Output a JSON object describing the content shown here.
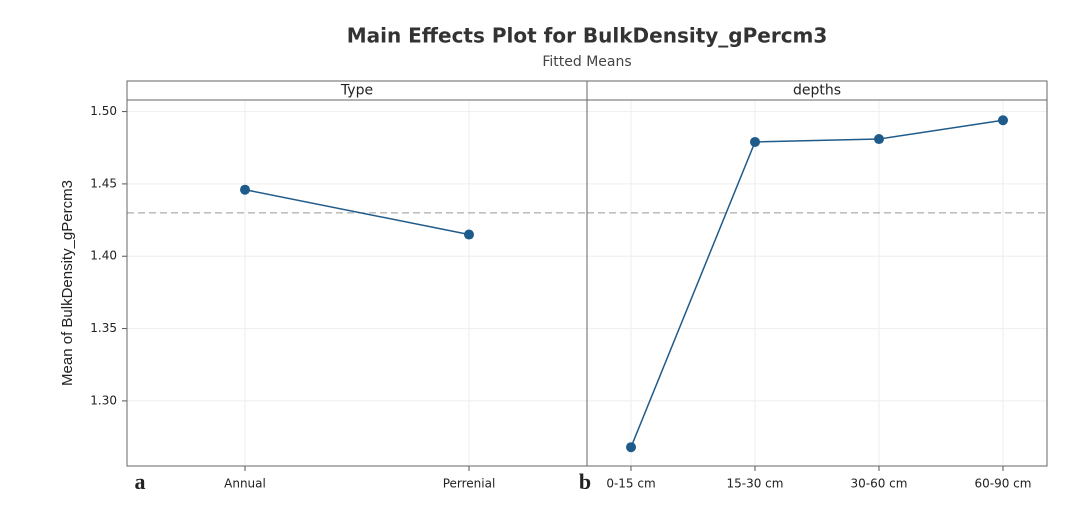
{
  "chart_data": {
    "type": "line",
    "title": "Main Effects Plot for BulkDensity_gPercm3",
    "subtitle": "Fitted Means",
    "ylabel": "Mean of BulkDensity_gPercm3",
    "ylim": [
      1.255,
      1.508
    ],
    "yticks": [
      {
        "value": 1.3,
        "label": "1.30"
      },
      1.35,
      {
        "value": 1.4,
        "label": "1.40"
      },
      1.45,
      {
        "value": 1.5,
        "label": "1.50"
      }
    ],
    "grid": true,
    "reference_line": 1.43,
    "color": "#1f5b8a",
    "panels": [
      {
        "title": "Type",
        "label": "a",
        "categories": [
          "Annual",
          "Perrenial"
        ],
        "values": [
          1.446,
          1.415
        ]
      },
      {
        "title": "depths",
        "label": "b",
        "categories": [
          "0-15 cm",
          "15-30 cm",
          "30-60 cm",
          "60-90 cm"
        ],
        "values": [
          1.268,
          1.479,
          1.481,
          1.494
        ]
      }
    ]
  }
}
